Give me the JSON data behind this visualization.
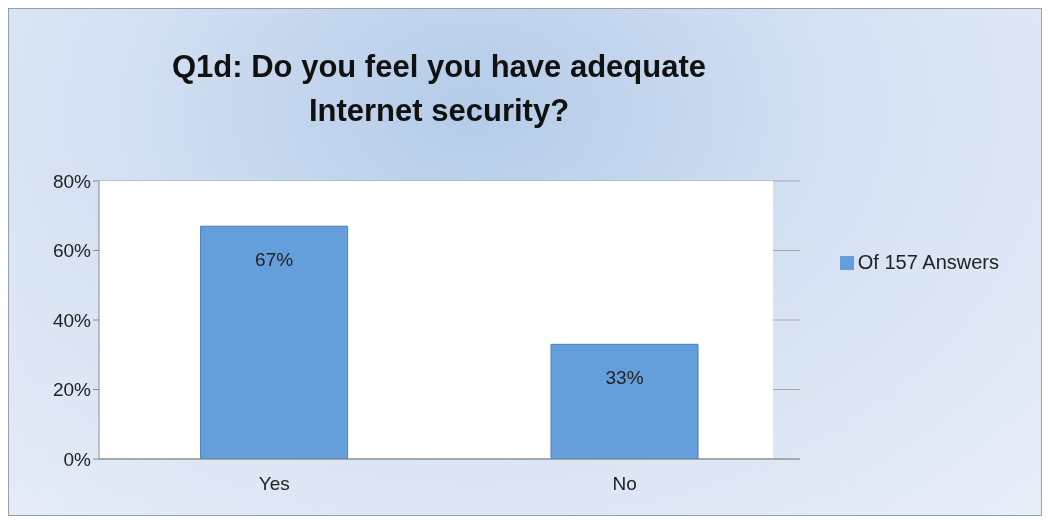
{
  "chart_data": {
    "type": "bar",
    "title": "Q1d: Do you feel you have adequate Internet security?",
    "categories": [
      "Yes",
      "No"
    ],
    "series": [
      {
        "name": "Of 157 Answers",
        "color": "#659fdb",
        "values": [
          67,
          33
        ],
        "value_labels": [
          "67%",
          "33%"
        ]
      }
    ],
    "ylim": [
      0,
      80
    ],
    "yticks": [
      {
        "value": 0,
        "label": "0%"
      },
      {
        "value": 20,
        "label": "20%"
      },
      {
        "value": 40,
        "label": "40%"
      },
      {
        "value": 60,
        "label": "60%"
      },
      {
        "value": 80,
        "label": "80%"
      }
    ],
    "grid": "y",
    "legend": "right"
  }
}
